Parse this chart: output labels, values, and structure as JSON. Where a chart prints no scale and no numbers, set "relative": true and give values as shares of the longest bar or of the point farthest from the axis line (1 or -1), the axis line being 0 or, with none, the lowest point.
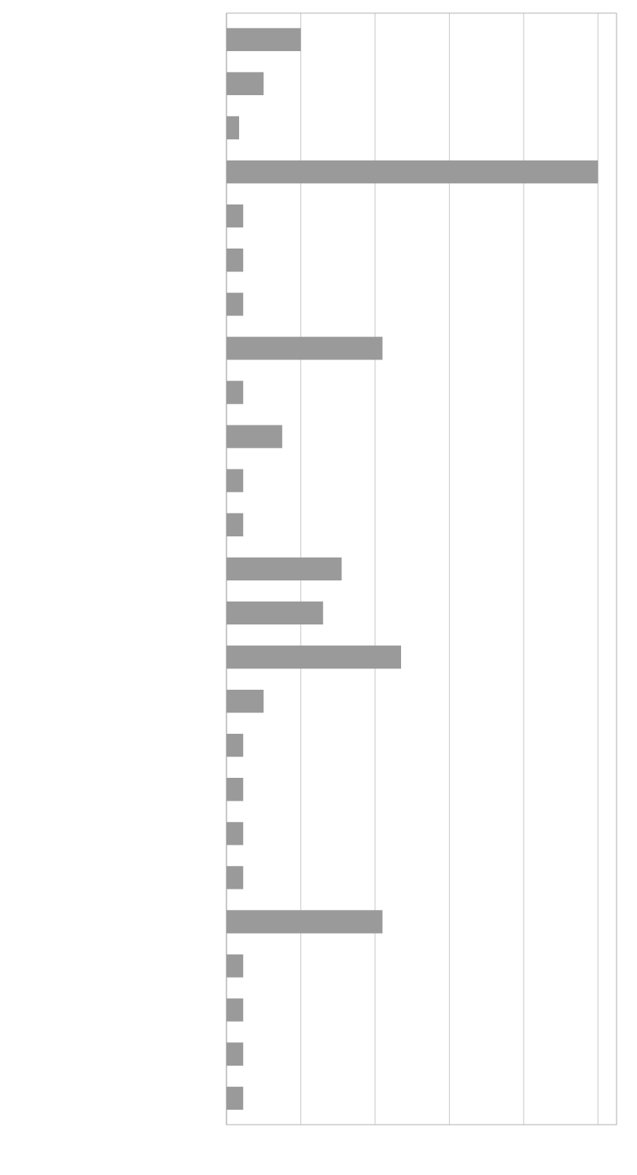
{
  "chart_data": {
    "type": "bar",
    "orientation": "horizontal",
    "relative": true,
    "grid": "x",
    "color": "#9a9a9a",
    "categories": [
      null,
      null,
      null,
      null,
      null,
      null,
      null,
      null,
      null,
      null,
      null,
      null,
      null,
      null,
      null,
      null,
      null,
      null,
      null,
      null,
      null,
      null,
      null,
      null,
      null
    ],
    "values": [
      0.2,
      0.1,
      0.034,
      1,
      0.045,
      0.045,
      0.045,
      0.42,
      0.045,
      0.15,
      0.045,
      0.045,
      0.31,
      0.26,
      0.47,
      0.1,
      0.045,
      0.045,
      0.045,
      0.045,
      0.42,
      0.045,
      0.045,
      0.045,
      0.045
    ]
  }
}
